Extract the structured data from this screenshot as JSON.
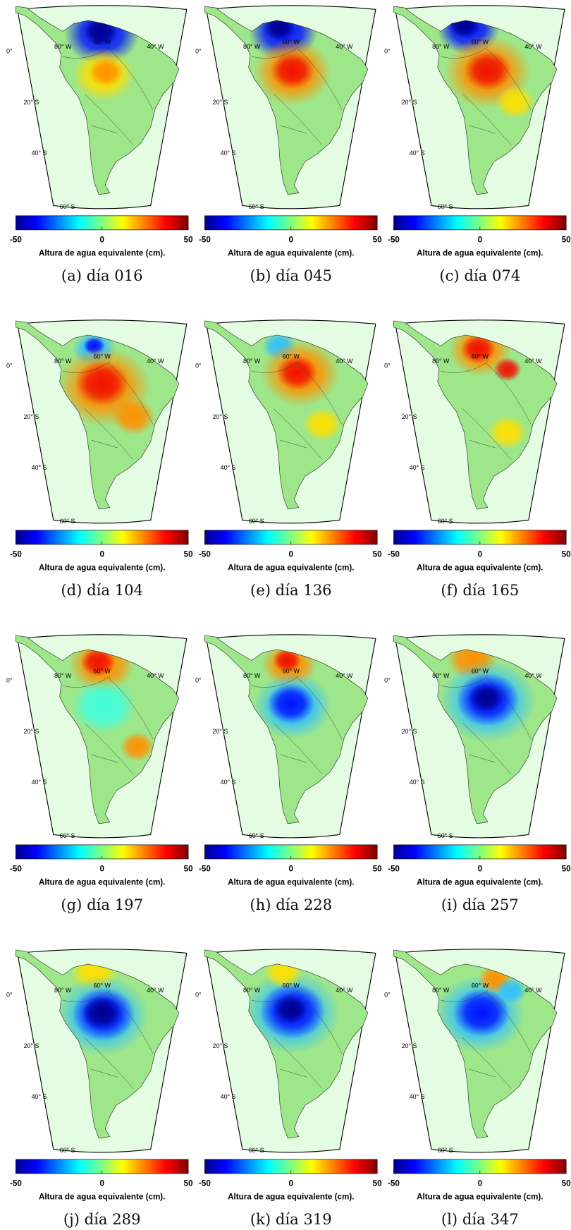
{
  "colorbar": {
    "ticks": [
      -50,
      0,
      50
    ],
    "label": "Altura de agua equivalente (cm)."
  },
  "graticule_labels": {
    "longitude": [
      "80° W",
      "60° W",
      "40° W"
    ],
    "latitude": [
      "0°",
      "20° S",
      "40° S",
      "60° S"
    ]
  },
  "panels": [
    {
      "caption": "(a) día 016"
    },
    {
      "caption": "(b) día 045"
    },
    {
      "caption": "(c) día 074"
    },
    {
      "caption": "(d) día 104"
    },
    {
      "caption": "(e) día 136"
    },
    {
      "caption": "(f) día 165"
    },
    {
      "caption": "(g) día 197"
    },
    {
      "caption": "(h) día 228"
    },
    {
      "caption": "(i) día 257"
    },
    {
      "caption": "(j) día 289"
    },
    {
      "caption": "(k) día 319"
    },
    {
      "caption": "(l) día 347"
    }
  ]
}
